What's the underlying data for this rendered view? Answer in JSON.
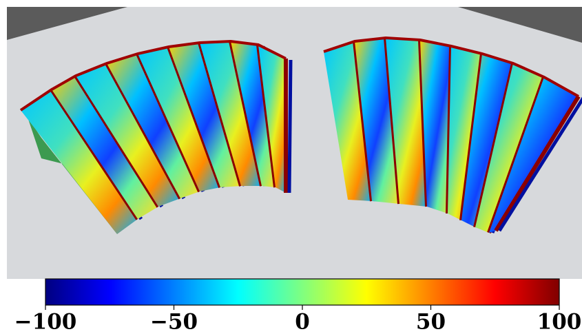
{
  "colorbar": {
    "colormap": "jet",
    "lim": [
      -100,
      100
    ],
    "ticks": [
      {
        "value": -100,
        "label": "−100"
      },
      {
        "value": -50,
        "label": "−50"
      },
      0,
      50,
      100
    ]
  }
}
